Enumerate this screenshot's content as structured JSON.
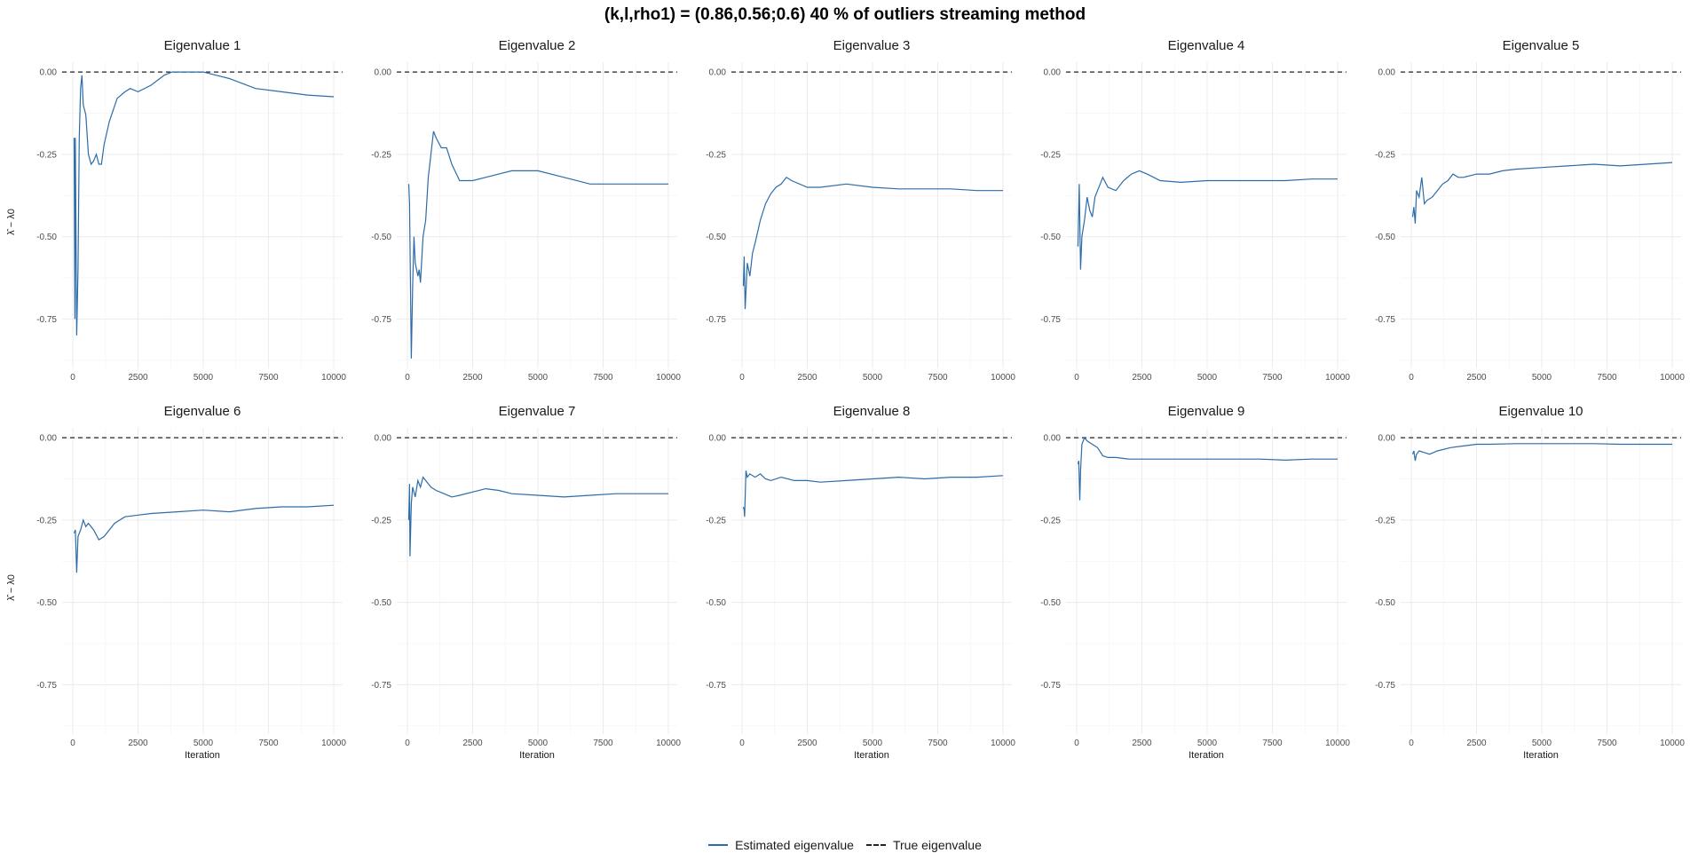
{
  "title": "(k,l,rho1) = (0.86,0.56;0.6) 40 % of outliers streaming method",
  "legend": {
    "estimated_label": "Estimated eigenvalue",
    "true_label": "True eigenvalue"
  },
  "colors": {
    "estimated": "#2c6ca8",
    "true": "#222222"
  },
  "chart_data": {
    "type": "line",
    "layout": "facet-grid-2x5",
    "xlabel": "Iteration",
    "ylabel": "λ̂ − λ0",
    "xlim": [
      0,
      10000
    ],
    "ylim": [
      -0.9,
      0.03
    ],
    "x_ticks": [
      0,
      2500,
      5000,
      7500,
      10000
    ],
    "y_ticks": [
      0.0,
      -0.25,
      -0.5,
      -0.75
    ],
    "y_tick_labels": [
      "0.00",
      "-0.25",
      "-0.50",
      "-0.75"
    ],
    "true_value": 0.0,
    "grid": true,
    "legend_position": "bottom",
    "panels": [
      {
        "title": "Eigenvalue 1",
        "points": [
          [
            50,
            -0.2
          ],
          [
            80,
            -0.75
          ],
          [
            100,
            -0.2
          ],
          [
            150,
            -0.8
          ],
          [
            200,
            -0.6
          ],
          [
            250,
            -0.2
          ],
          [
            300,
            -0.05
          ],
          [
            350,
            -0.01
          ],
          [
            400,
            -0.1
          ],
          [
            500,
            -0.13
          ],
          [
            600,
            -0.25
          ],
          [
            700,
            -0.28
          ],
          [
            800,
            -0.27
          ],
          [
            900,
            -0.25
          ],
          [
            1000,
            -0.28
          ],
          [
            1100,
            -0.28
          ],
          [
            1200,
            -0.22
          ],
          [
            1400,
            -0.15
          ],
          [
            1700,
            -0.08
          ],
          [
            2000,
            -0.06
          ],
          [
            2200,
            -0.05
          ],
          [
            2500,
            -0.06
          ],
          [
            3000,
            -0.04
          ],
          [
            3500,
            -0.01
          ],
          [
            3800,
            0.0
          ],
          [
            4500,
            0.0
          ],
          [
            5000,
            0.0
          ],
          [
            5500,
            -0.01
          ],
          [
            6000,
            -0.02
          ],
          [
            7000,
            -0.05
          ],
          [
            8000,
            -0.06
          ],
          [
            9000,
            -0.07
          ],
          [
            10000,
            -0.075
          ]
        ]
      },
      {
        "title": "Eigenvalue 2",
        "points": [
          [
            50,
            -0.34
          ],
          [
            80,
            -0.4
          ],
          [
            150,
            -0.87
          ],
          [
            200,
            -0.65
          ],
          [
            250,
            -0.5
          ],
          [
            300,
            -0.58
          ],
          [
            400,
            -0.62
          ],
          [
            450,
            -0.6
          ],
          [
            500,
            -0.64
          ],
          [
            600,
            -0.5
          ],
          [
            700,
            -0.45
          ],
          [
            800,
            -0.32
          ],
          [
            900,
            -0.25
          ],
          [
            1000,
            -0.18
          ],
          [
            1100,
            -0.2
          ],
          [
            1300,
            -0.23
          ],
          [
            1500,
            -0.23
          ],
          [
            1700,
            -0.28
          ],
          [
            2000,
            -0.33
          ],
          [
            2500,
            -0.33
          ],
          [
            3000,
            -0.32
          ],
          [
            3500,
            -0.31
          ],
          [
            4000,
            -0.3
          ],
          [
            4500,
            -0.3
          ],
          [
            5000,
            -0.3
          ],
          [
            6000,
            -0.32
          ],
          [
            7000,
            -0.34
          ],
          [
            8000,
            -0.34
          ],
          [
            9000,
            -0.34
          ],
          [
            10000,
            -0.34
          ]
        ]
      },
      {
        "title": "Eigenvalue 3",
        "points": [
          [
            50,
            -0.65
          ],
          [
            80,
            -0.56
          ],
          [
            120,
            -0.72
          ],
          [
            200,
            -0.58
          ],
          [
            300,
            -0.62
          ],
          [
            400,
            -0.55
          ],
          [
            500,
            -0.52
          ],
          [
            700,
            -0.45
          ],
          [
            900,
            -0.4
          ],
          [
            1100,
            -0.37
          ],
          [
            1300,
            -0.35
          ],
          [
            1500,
            -0.34
          ],
          [
            1700,
            -0.32
          ],
          [
            1900,
            -0.33
          ],
          [
            2500,
            -0.35
          ],
          [
            3000,
            -0.35
          ],
          [
            4000,
            -0.34
          ],
          [
            5000,
            -0.35
          ],
          [
            6000,
            -0.355
          ],
          [
            7000,
            -0.355
          ],
          [
            8000,
            -0.355
          ],
          [
            9000,
            -0.36
          ],
          [
            10000,
            -0.36
          ]
        ]
      },
      {
        "title": "Eigenvalue 4",
        "points": [
          [
            50,
            -0.53
          ],
          [
            100,
            -0.34
          ],
          [
            150,
            -0.6
          ],
          [
            200,
            -0.5
          ],
          [
            300,
            -0.45
          ],
          [
            400,
            -0.38
          ],
          [
            500,
            -0.42
          ],
          [
            600,
            -0.44
          ],
          [
            700,
            -0.38
          ],
          [
            800,
            -0.36
          ],
          [
            900,
            -0.34
          ],
          [
            1000,
            -0.32
          ],
          [
            1200,
            -0.35
          ],
          [
            1500,
            -0.36
          ],
          [
            1800,
            -0.33
          ],
          [
            2100,
            -0.31
          ],
          [
            2400,
            -0.3
          ],
          [
            2700,
            -0.31
          ],
          [
            3200,
            -0.33
          ],
          [
            4000,
            -0.335
          ],
          [
            5000,
            -0.33
          ],
          [
            6000,
            -0.33
          ],
          [
            7000,
            -0.33
          ],
          [
            8000,
            -0.33
          ],
          [
            9000,
            -0.325
          ],
          [
            10000,
            -0.325
          ]
        ]
      },
      {
        "title": "Eigenvalue 5",
        "points": [
          [
            50,
            -0.44
          ],
          [
            100,
            -0.41
          ],
          [
            150,
            -0.46
          ],
          [
            200,
            -0.36
          ],
          [
            300,
            -0.38
          ],
          [
            400,
            -0.32
          ],
          [
            500,
            -0.4
          ],
          [
            600,
            -0.39
          ],
          [
            800,
            -0.38
          ],
          [
            1000,
            -0.36
          ],
          [
            1200,
            -0.34
          ],
          [
            1400,
            -0.33
          ],
          [
            1600,
            -0.31
          ],
          [
            1800,
            -0.32
          ],
          [
            2000,
            -0.32
          ],
          [
            2500,
            -0.31
          ],
          [
            3000,
            -0.31
          ],
          [
            3500,
            -0.3
          ],
          [
            4000,
            -0.295
          ],
          [
            5000,
            -0.29
          ],
          [
            6000,
            -0.285
          ],
          [
            7000,
            -0.28
          ],
          [
            8000,
            -0.285
          ],
          [
            9000,
            -0.28
          ],
          [
            10000,
            -0.275
          ]
        ]
      },
      {
        "title": "Eigenvalue 6",
        "points": [
          [
            50,
            -0.29
          ],
          [
            100,
            -0.28
          ],
          [
            150,
            -0.41
          ],
          [
            200,
            -0.3
          ],
          [
            300,
            -0.28
          ],
          [
            400,
            -0.25
          ],
          [
            500,
            -0.27
          ],
          [
            600,
            -0.26
          ],
          [
            800,
            -0.28
          ],
          [
            1000,
            -0.31
          ],
          [
            1200,
            -0.3
          ],
          [
            1400,
            -0.28
          ],
          [
            1600,
            -0.26
          ],
          [
            2000,
            -0.24
          ],
          [
            2500,
            -0.235
          ],
          [
            3000,
            -0.23
          ],
          [
            4000,
            -0.225
          ],
          [
            5000,
            -0.22
          ],
          [
            6000,
            -0.225
          ],
          [
            7000,
            -0.215
          ],
          [
            8000,
            -0.21
          ],
          [
            9000,
            -0.21
          ],
          [
            10000,
            -0.205
          ]
        ]
      },
      {
        "title": "Eigenvalue 7",
        "points": [
          [
            50,
            -0.25
          ],
          [
            80,
            -0.14
          ],
          [
            100,
            -0.36
          ],
          [
            150,
            -0.2
          ],
          [
            200,
            -0.15
          ],
          [
            300,
            -0.18
          ],
          [
            400,
            -0.13
          ],
          [
            500,
            -0.15
          ],
          [
            600,
            -0.12
          ],
          [
            700,
            -0.13
          ],
          [
            900,
            -0.15
          ],
          [
            1100,
            -0.16
          ],
          [
            1400,
            -0.17
          ],
          [
            1700,
            -0.18
          ],
          [
            2000,
            -0.175
          ],
          [
            2500,
            -0.165
          ],
          [
            3000,
            -0.155
          ],
          [
            3500,
            -0.16
          ],
          [
            4000,
            -0.17
          ],
          [
            5000,
            -0.175
          ],
          [
            6000,
            -0.18
          ],
          [
            7000,
            -0.175
          ],
          [
            8000,
            -0.17
          ],
          [
            9000,
            -0.17
          ],
          [
            10000,
            -0.17
          ]
        ]
      },
      {
        "title": "Eigenvalue 8",
        "points": [
          [
            50,
            -0.21
          ],
          [
            80,
            -0.22
          ],
          [
            100,
            -0.24
          ],
          [
            150,
            -0.1
          ],
          [
            200,
            -0.12
          ],
          [
            300,
            -0.11
          ],
          [
            500,
            -0.12
          ],
          [
            700,
            -0.11
          ],
          [
            900,
            -0.125
          ],
          [
            1100,
            -0.13
          ],
          [
            1500,
            -0.12
          ],
          [
            2000,
            -0.13
          ],
          [
            2500,
            -0.13
          ],
          [
            3000,
            -0.135
          ],
          [
            4000,
            -0.13
          ],
          [
            5000,
            -0.125
          ],
          [
            6000,
            -0.12
          ],
          [
            7000,
            -0.125
          ],
          [
            8000,
            -0.12
          ],
          [
            9000,
            -0.12
          ],
          [
            10000,
            -0.115
          ]
        ]
      },
      {
        "title": "Eigenvalue 9",
        "points": [
          [
            50,
            -0.08
          ],
          [
            80,
            -0.07
          ],
          [
            120,
            -0.19
          ],
          [
            150,
            -0.1
          ],
          [
            200,
            -0.02
          ],
          [
            300,
            0.0
          ],
          [
            400,
            -0.01
          ],
          [
            600,
            -0.02
          ],
          [
            800,
            -0.03
          ],
          [
            1000,
            -0.055
          ],
          [
            1200,
            -0.06
          ],
          [
            1500,
            -0.06
          ],
          [
            2000,
            -0.065
          ],
          [
            3000,
            -0.065
          ],
          [
            4000,
            -0.065
          ],
          [
            5000,
            -0.065
          ],
          [
            6000,
            -0.065
          ],
          [
            7000,
            -0.065
          ],
          [
            8000,
            -0.068
          ],
          [
            9000,
            -0.065
          ],
          [
            10000,
            -0.065
          ]
        ]
      },
      {
        "title": "Eigenvalue 10",
        "points": [
          [
            50,
            -0.05
          ],
          [
            100,
            -0.04
          ],
          [
            150,
            -0.07
          ],
          [
            200,
            -0.05
          ],
          [
            300,
            -0.04
          ],
          [
            500,
            -0.045
          ],
          [
            700,
            -0.05
          ],
          [
            1000,
            -0.04
          ],
          [
            1500,
            -0.03
          ],
          [
            2000,
            -0.025
          ],
          [
            2500,
            -0.02
          ],
          [
            3000,
            -0.02
          ],
          [
            4000,
            -0.018
          ],
          [
            5000,
            -0.018
          ],
          [
            6000,
            -0.018
          ],
          [
            7000,
            -0.018
          ],
          [
            8000,
            -0.02
          ],
          [
            9000,
            -0.02
          ],
          [
            10000,
            -0.02
          ]
        ]
      }
    ]
  }
}
